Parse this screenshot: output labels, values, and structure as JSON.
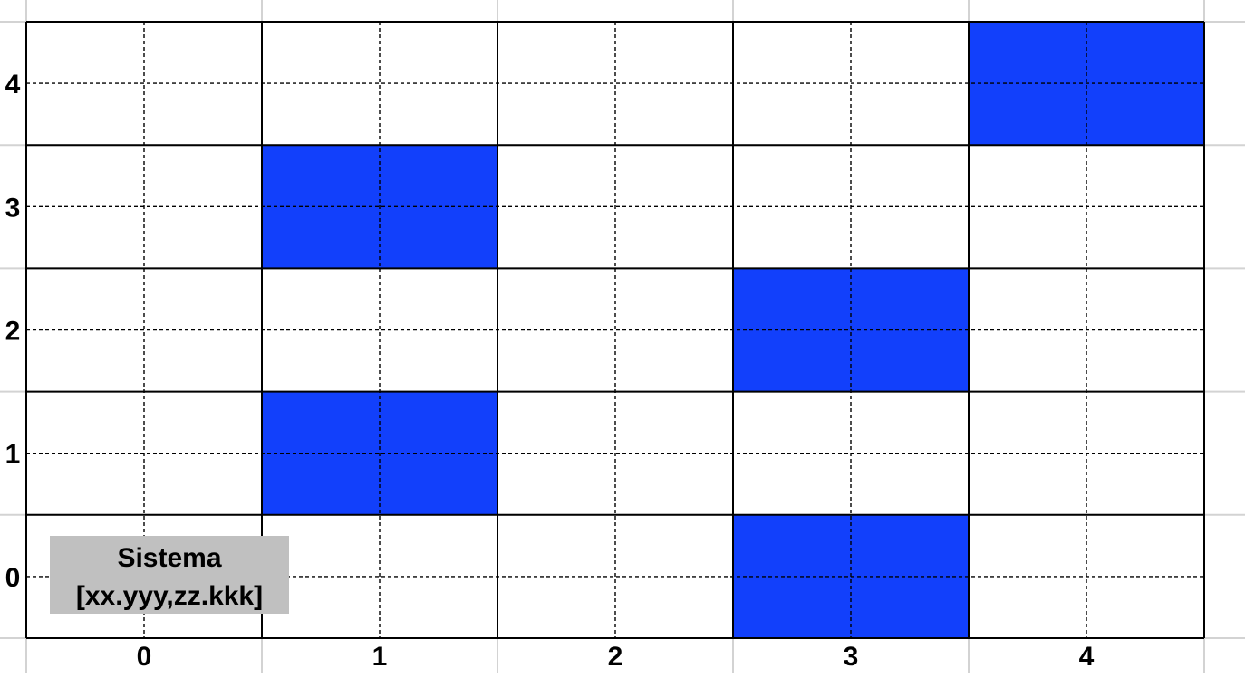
{
  "grid": {
    "cols": 5,
    "rows": 5,
    "x_labels": [
      "0",
      "1",
      "2",
      "3",
      "4"
    ],
    "y_labels": [
      "0",
      "1",
      "2",
      "3",
      "4"
    ]
  },
  "filled_cells": [
    {
      "col": 1,
      "row": 1
    },
    {
      "col": 1,
      "row": 3
    },
    {
      "col": 3,
      "row": 0
    },
    {
      "col": 3,
      "row": 2
    },
    {
      "col": 4,
      "row": 4
    }
  ],
  "label_box": {
    "line1": "Sistema",
    "line2": "[xx.yyy,zz.kkk]"
  },
  "colors": {
    "fill": "#1240fb",
    "grid_line": "#000000",
    "dashed_line": "#000000",
    "background_grid": "#d3d3d3",
    "label_box": "#c0c0c0"
  }
}
